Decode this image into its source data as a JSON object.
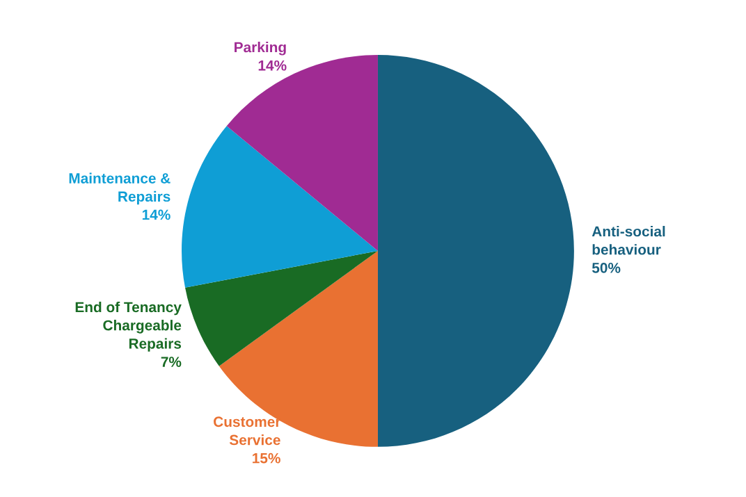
{
  "chart_data": {
    "type": "pie",
    "categories": [
      "Anti-social\nbehaviour",
      "Customer\nService",
      "End of Tenancy\nChargeable\nRepairs",
      "Maintenance &\nRepairs",
      "Parking"
    ],
    "values": [
      50,
      15,
      7,
      14,
      14
    ],
    "value_labels": [
      "50%",
      "15%",
      "7%",
      "14%",
      "14%"
    ],
    "colors": [
      "#17607f",
      "#e97132",
      "#196b24",
      "#0f9ed5",
      "#a02b93"
    ]
  }
}
